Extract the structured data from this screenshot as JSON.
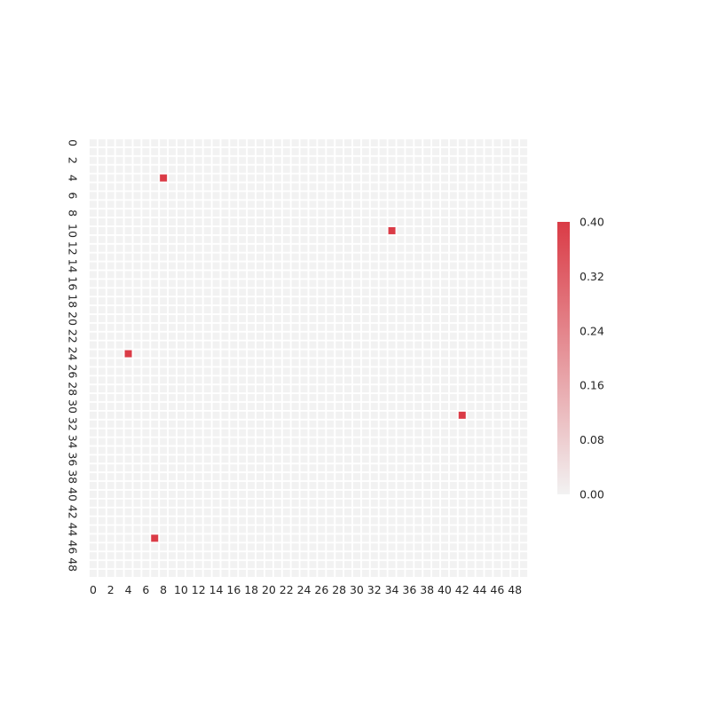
{
  "chart_data": {
    "type": "heatmap",
    "title": "",
    "xlabel": "",
    "ylabel": "",
    "rows": 50,
    "cols": 50,
    "default_value": 0.0,
    "cells": [
      {
        "row": 4,
        "col": 8,
        "value": 0.4
      },
      {
        "row": 10,
        "col": 34,
        "value": 0.4
      },
      {
        "row": 24,
        "col": 4,
        "value": 0.4
      },
      {
        "row": 31,
        "col": 42,
        "value": 0.4
      },
      {
        "row": 45,
        "col": 7,
        "value": 0.4
      }
    ],
    "x_tick_labels": [
      "0",
      "2",
      "4",
      "6",
      "8",
      "10",
      "12",
      "14",
      "16",
      "18",
      "20",
      "22",
      "24",
      "26",
      "28",
      "30",
      "32",
      "34",
      "36",
      "38",
      "40",
      "42",
      "44",
      "46",
      "48"
    ],
    "y_tick_labels": [
      "0",
      "2",
      "4",
      "6",
      "8",
      "10",
      "12",
      "14",
      "16",
      "18",
      "20",
      "22",
      "24",
      "26",
      "28",
      "30",
      "32",
      "34",
      "36",
      "38",
      "40",
      "42",
      "44",
      "46",
      "48"
    ],
    "colorbar": {
      "min": 0.0,
      "max": 0.4,
      "ticks": [
        "0.00",
        "0.08",
        "0.16",
        "0.24",
        "0.32",
        "0.40"
      ],
      "low_color": "#f2f2f2",
      "high_color": "#da3b46"
    },
    "cell_gap_color": "#ffffff"
  }
}
